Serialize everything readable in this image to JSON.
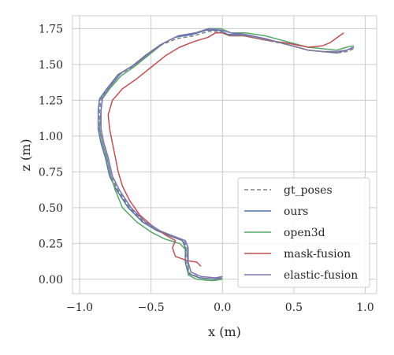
{
  "chart_data": {
    "type": "line",
    "xlabel": "x (m)",
    "ylabel": "z (m)",
    "xlim": [
      -1.05,
      1.08
    ],
    "ylim": [
      -0.1,
      1.84
    ],
    "xticks": [
      -1.0,
      -0.5,
      0.0,
      0.5,
      1.0
    ],
    "xtick_labels": [
      "−1.0",
      "−0.5",
      "0.0",
      "0.5",
      "1.0"
    ],
    "yticks": [
      0.0,
      0.25,
      0.5,
      0.75,
      1.0,
      1.25,
      1.5,
      1.75
    ],
    "ytick_labels": [
      "0.00",
      "0.25",
      "0.50",
      "0.75",
      "1.00",
      "1.25",
      "1.50",
      "1.75"
    ],
    "grid": true,
    "legend_position": "lower-right",
    "series": [
      {
        "name": "gt_poses",
        "color": "#808080",
        "dashed": true,
        "points": [
          [
            0.0,
            0.01
          ],
          [
            -0.05,
            0.0
          ],
          [
            -0.15,
            0.01
          ],
          [
            -0.23,
            0.04
          ],
          [
            -0.25,
            0.12
          ],
          [
            -0.25,
            0.22
          ],
          [
            -0.27,
            0.27
          ],
          [
            -0.35,
            0.3
          ],
          [
            -0.45,
            0.34
          ],
          [
            -0.55,
            0.4
          ],
          [
            -0.65,
            0.5
          ],
          [
            -0.73,
            0.62
          ],
          [
            -0.78,
            0.72
          ],
          [
            -0.81,
            0.85
          ],
          [
            -0.84,
            0.95
          ],
          [
            -0.86,
            1.05
          ],
          [
            -0.86,
            1.18
          ],
          [
            -0.85,
            1.26
          ],
          [
            -0.8,
            1.33
          ],
          [
            -0.72,
            1.43
          ],
          [
            -0.62,
            1.49
          ],
          [
            -0.52,
            1.57
          ],
          [
            -0.42,
            1.64
          ],
          [
            -0.32,
            1.68
          ],
          [
            -0.2,
            1.7
          ],
          [
            -0.1,
            1.73
          ],
          [
            -0.02,
            1.73
          ],
          [
            0.05,
            1.7
          ],
          [
            0.15,
            1.7
          ],
          [
            0.3,
            1.67
          ],
          [
            0.45,
            1.64
          ],
          [
            0.6,
            1.6
          ],
          [
            0.7,
            1.59
          ],
          [
            0.8,
            1.58
          ],
          [
            0.87,
            1.59
          ],
          [
            0.92,
            1.61
          ]
        ]
      },
      {
        "name": "ours",
        "color": "#4c72b0",
        "dashed": false,
        "points": [
          [
            -0.01,
            0.01
          ],
          [
            -0.06,
            0.0
          ],
          [
            -0.16,
            0.01
          ],
          [
            -0.24,
            0.04
          ],
          [
            -0.26,
            0.12
          ],
          [
            -0.26,
            0.22
          ],
          [
            -0.28,
            0.27
          ],
          [
            -0.36,
            0.3
          ],
          [
            -0.46,
            0.34
          ],
          [
            -0.56,
            0.4
          ],
          [
            -0.66,
            0.5
          ],
          [
            -0.74,
            0.62
          ],
          [
            -0.79,
            0.72
          ],
          [
            -0.82,
            0.85
          ],
          [
            -0.85,
            0.95
          ],
          [
            -0.87,
            1.05
          ],
          [
            -0.87,
            1.18
          ],
          [
            -0.86,
            1.26
          ],
          [
            -0.81,
            1.33
          ],
          [
            -0.73,
            1.43
          ],
          [
            -0.63,
            1.49
          ],
          [
            -0.53,
            1.57
          ],
          [
            -0.43,
            1.64
          ],
          [
            -0.33,
            1.69
          ],
          [
            -0.21,
            1.71
          ],
          [
            -0.11,
            1.74
          ],
          [
            -0.03,
            1.74
          ],
          [
            0.04,
            1.71
          ],
          [
            0.14,
            1.71
          ],
          [
            0.3,
            1.68
          ],
          [
            0.45,
            1.64
          ],
          [
            0.6,
            1.6
          ],
          [
            0.7,
            1.59
          ],
          [
            0.8,
            1.58
          ],
          [
            0.87,
            1.6
          ],
          [
            0.92,
            1.62
          ]
        ]
      },
      {
        "name": "open3d",
        "color": "#55a868",
        "dashed": false,
        "points": [
          [
            0.0,
            0.0
          ],
          [
            -0.07,
            -0.01
          ],
          [
            -0.18,
            0.0
          ],
          [
            -0.24,
            0.03
          ],
          [
            -0.24,
            0.1
          ],
          [
            -0.25,
            0.2
          ],
          [
            -0.3,
            0.25
          ],
          [
            -0.4,
            0.28
          ],
          [
            -0.5,
            0.33
          ],
          [
            -0.6,
            0.4
          ],
          [
            -0.7,
            0.5
          ],
          [
            -0.75,
            0.62
          ],
          [
            -0.78,
            0.72
          ],
          [
            -0.81,
            0.85
          ],
          [
            -0.84,
            0.95
          ],
          [
            -0.86,
            1.05
          ],
          [
            -0.85,
            1.18
          ],
          [
            -0.84,
            1.26
          ],
          [
            -0.79,
            1.33
          ],
          [
            -0.71,
            1.42
          ],
          [
            -0.61,
            1.49
          ],
          [
            -0.51,
            1.57
          ],
          [
            -0.41,
            1.65
          ],
          [
            -0.31,
            1.7
          ],
          [
            -0.19,
            1.72
          ],
          [
            -0.1,
            1.75
          ],
          [
            -0.01,
            1.75
          ],
          [
            0.06,
            1.72
          ],
          [
            0.16,
            1.72
          ],
          [
            0.3,
            1.7
          ],
          [
            0.45,
            1.66
          ],
          [
            0.6,
            1.62
          ],
          [
            0.7,
            1.61
          ],
          [
            0.8,
            1.6
          ],
          [
            0.87,
            1.62
          ],
          [
            0.92,
            1.63
          ]
        ]
      },
      {
        "name": "mask-fusion",
        "color": "#c44e52",
        "dashed": false,
        "points": [
          [
            -0.15,
            0.09
          ],
          [
            -0.18,
            0.12
          ],
          [
            -0.25,
            0.13
          ],
          [
            -0.33,
            0.16
          ],
          [
            -0.35,
            0.22
          ],
          [
            -0.33,
            0.27
          ],
          [
            -0.4,
            0.31
          ],
          [
            -0.5,
            0.38
          ],
          [
            -0.58,
            0.45
          ],
          [
            -0.65,
            0.55
          ],
          [
            -0.7,
            0.65
          ],
          [
            -0.73,
            0.75
          ],
          [
            -0.75,
            0.85
          ],
          [
            -0.77,
            0.95
          ],
          [
            -0.79,
            1.05
          ],
          [
            -0.8,
            1.15
          ],
          [
            -0.77,
            1.25
          ],
          [
            -0.7,
            1.33
          ],
          [
            -0.6,
            1.4
          ],
          [
            -0.5,
            1.48
          ],
          [
            -0.4,
            1.56
          ],
          [
            -0.3,
            1.62
          ],
          [
            -0.2,
            1.66
          ],
          [
            -0.1,
            1.69
          ],
          [
            -0.05,
            1.72
          ],
          [
            0.0,
            1.72
          ],
          [
            0.05,
            1.7
          ],
          [
            0.15,
            1.7
          ],
          [
            0.3,
            1.67
          ],
          [
            0.45,
            1.65
          ],
          [
            0.6,
            1.62
          ],
          [
            0.7,
            1.63
          ],
          [
            0.75,
            1.65
          ],
          [
            0.78,
            1.67
          ],
          [
            0.82,
            1.7
          ],
          [
            0.85,
            1.72
          ]
        ]
      },
      {
        "name": "elastic-fusion",
        "color": "#8172b3",
        "dashed": false,
        "points": [
          [
            0.0,
            0.02
          ],
          [
            -0.05,
            0.01
          ],
          [
            -0.15,
            0.02
          ],
          [
            -0.22,
            0.05
          ],
          [
            -0.24,
            0.12
          ],
          [
            -0.24,
            0.22
          ],
          [
            -0.26,
            0.27
          ],
          [
            -0.34,
            0.3
          ],
          [
            -0.44,
            0.34
          ],
          [
            -0.54,
            0.4
          ],
          [
            -0.64,
            0.5
          ],
          [
            -0.72,
            0.62
          ],
          [
            -0.77,
            0.72
          ],
          [
            -0.8,
            0.85
          ],
          [
            -0.83,
            0.95
          ],
          [
            -0.85,
            1.05
          ],
          [
            -0.85,
            1.18
          ],
          [
            -0.84,
            1.27
          ],
          [
            -0.79,
            1.34
          ],
          [
            -0.71,
            1.44
          ],
          [
            -0.61,
            1.5
          ],
          [
            -0.51,
            1.58
          ],
          [
            -0.41,
            1.65
          ],
          [
            -0.31,
            1.7
          ],
          [
            -0.19,
            1.72
          ],
          [
            -0.09,
            1.75
          ],
          [
            -0.01,
            1.74
          ],
          [
            0.06,
            1.72
          ],
          [
            0.16,
            1.71
          ],
          [
            0.3,
            1.68
          ],
          [
            0.45,
            1.64
          ],
          [
            0.6,
            1.6
          ],
          [
            0.7,
            1.59
          ],
          [
            0.8,
            1.59
          ],
          [
            0.87,
            1.6
          ],
          [
            0.92,
            1.62
          ]
        ]
      }
    ]
  }
}
